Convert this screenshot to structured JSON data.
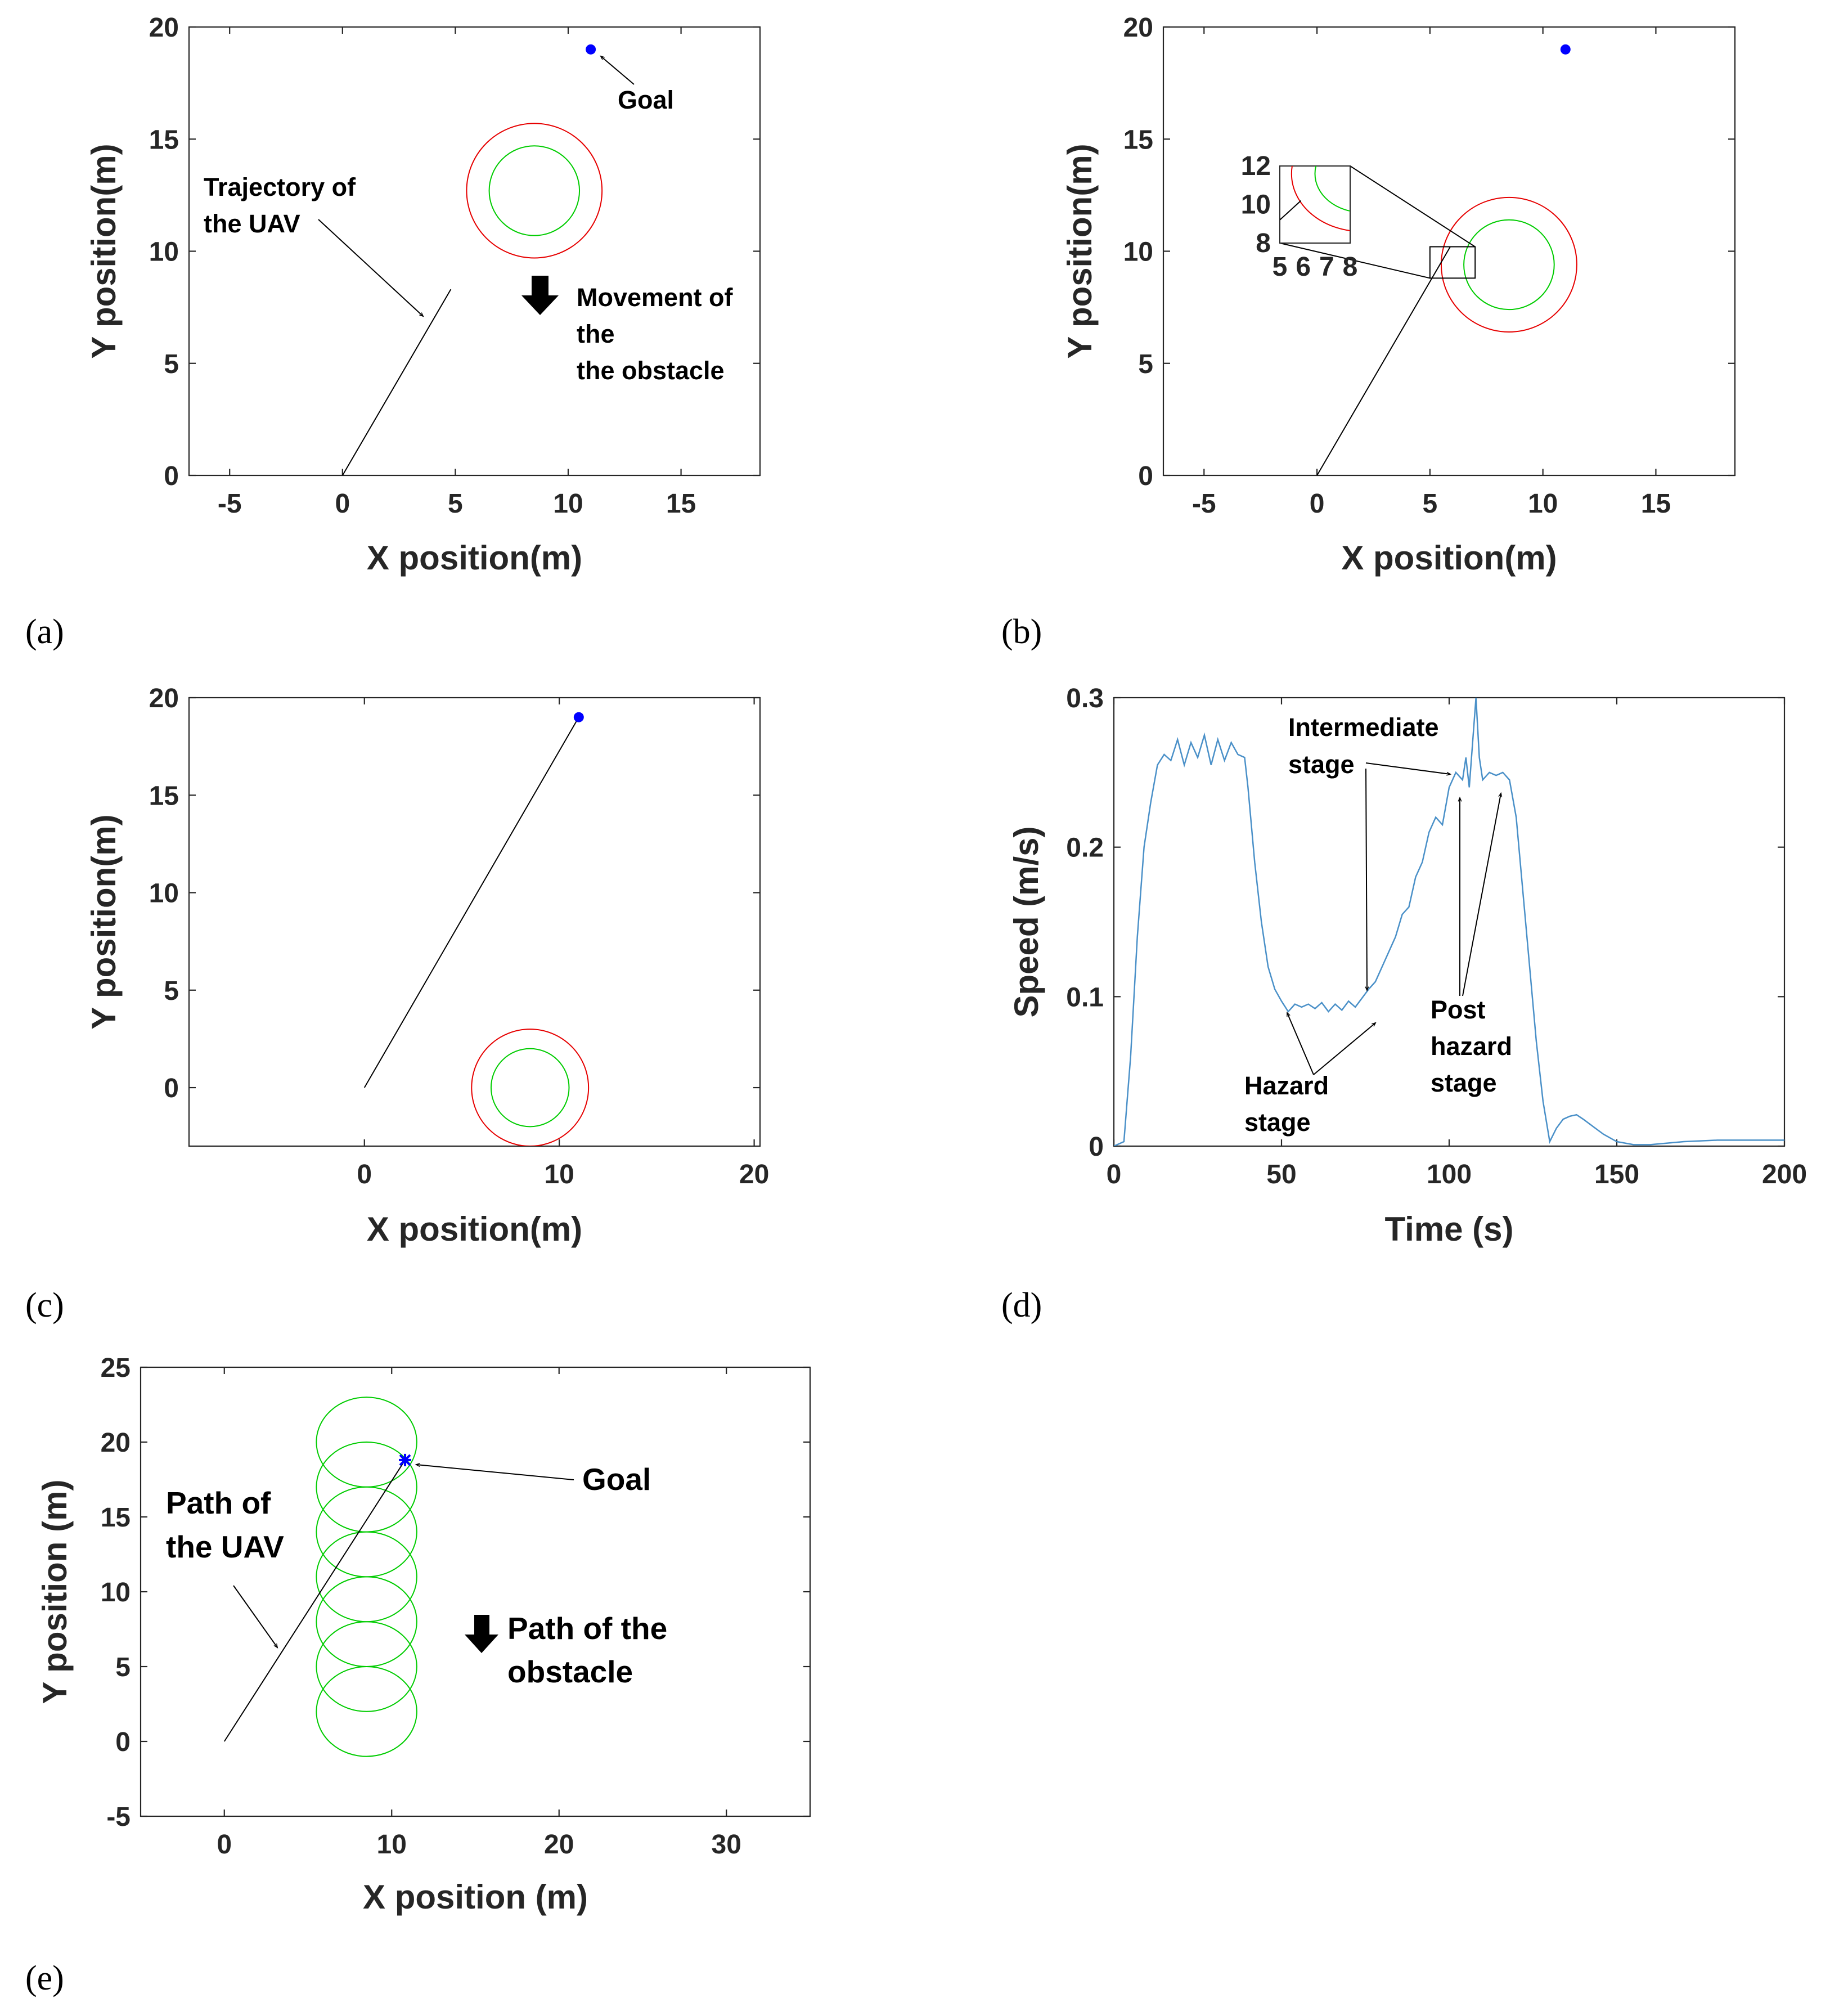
{
  "colors": {
    "trajectory": "#000000",
    "goal": "#0000ff",
    "inner_circle": "#00cc00",
    "outer_circle": "#e60000",
    "speed_line": "#4a90c8",
    "axes": "#262626"
  },
  "panels": {
    "a": {
      "label": "(a)",
      "ann_goal": "Goal",
      "ann_traj_1": "Trajectory of",
      "ann_traj_2": "the UAV",
      "ann_move_1": "Movement of",
      "ann_move_2": "the",
      "ann_move_3": "the obstacle"
    },
    "b": {
      "label": "(b)"
    },
    "c": {
      "label": "(c)"
    },
    "d": {
      "label": "(d)",
      "ann_inter_1": "Intermediate",
      "ann_inter_2": "stage",
      "ann_hazard_1": "Hazard",
      "ann_hazard_2": "stage",
      "ann_post_1": "Post",
      "ann_post_2": "hazard",
      "ann_post_3": "stage"
    },
    "e": {
      "label": "(e)",
      "ann_goal": "Goal",
      "ann_path_1": "Path of",
      "ann_path_2": "the UAV",
      "ann_obs_1": "Path of the",
      "ann_obs_2": "obstacle"
    }
  },
  "chart_data": [
    {
      "id": "a",
      "type": "scatter",
      "xlabel": "X position(m)",
      "ylabel": "Y position(m)",
      "xlim": [
        -6.8,
        18.5
      ],
      "ylim": [
        0,
        20
      ],
      "xticks": [
        -5,
        0,
        5,
        10,
        15
      ],
      "yticks": [
        0,
        5,
        10,
        15,
        20
      ],
      "trajectory": [
        [
          0,
          0
        ],
        [
          4.8,
          8.3
        ]
      ],
      "goal": [
        11,
        19
      ],
      "circles": [
        {
          "cx": 8.5,
          "cy": 12.7,
          "r": 2.0,
          "color": "green"
        },
        {
          "cx": 8.5,
          "cy": 12.7,
          "r": 3.0,
          "color": "red"
        }
      ]
    },
    {
      "id": "b",
      "type": "scatter",
      "xlabel": "X position(m)",
      "ylabel": "Y position(m)",
      "xlim": [
        -6.8,
        18.5
      ],
      "ylim": [
        0,
        20
      ],
      "xticks": [
        -5,
        0,
        5,
        10,
        15
      ],
      "yticks": [
        0,
        5,
        10,
        15,
        20
      ],
      "trajectory": [
        [
          0,
          0
        ],
        [
          5.9,
          10.2
        ]
      ],
      "goal": [
        11,
        19
      ],
      "circles": [
        {
          "cx": 8.5,
          "cy": 9.4,
          "r": 2.0,
          "color": "green"
        },
        {
          "cx": 8.5,
          "cy": 9.4,
          "r": 3.0,
          "color": "red"
        }
      ],
      "inset": {
        "xlim": [
          5,
          8
        ],
        "ylim": [
          8,
          12
        ],
        "xticks": [
          5,
          6,
          7,
          8
        ],
        "yticks": [
          8,
          10,
          12
        ]
      }
    },
    {
      "id": "c",
      "type": "scatter",
      "xlabel": "X position(m)",
      "ylabel": "Y position(m)",
      "xlim": [
        -9,
        20.3
      ],
      "ylim": [
        -3,
        20
      ],
      "xticks": [
        0,
        10,
        20
      ],
      "yticks": [
        0,
        5,
        10,
        15,
        20
      ],
      "trajectory": [
        [
          0,
          0
        ],
        [
          11,
          19
        ]
      ],
      "goal": [
        11,
        19
      ],
      "circles": [
        {
          "cx": 8.5,
          "cy": 0,
          "r": 2.0,
          "color": "green"
        },
        {
          "cx": 8.5,
          "cy": 0,
          "r": 3.0,
          "color": "red"
        }
      ]
    },
    {
      "id": "d",
      "type": "line",
      "xlabel": "Time (s)",
      "ylabel": "Speed (m/s)",
      "xlim": [
        0,
        200
      ],
      "ylim": [
        0,
        0.3
      ],
      "xticks": [
        0,
        50,
        100,
        150,
        200
      ],
      "yticks": [
        0,
        0.1,
        0.2,
        0.3
      ],
      "series": [
        {
          "x": [
            0,
            3,
            5,
            7,
            9,
            11,
            13,
            15,
            17,
            19,
            21,
            23,
            25,
            27,
            29,
            31,
            33,
            35,
            37,
            39,
            40,
            42,
            44,
            46,
            48,
            50,
            52,
            54,
            56,
            58,
            60,
            62,
            64,
            66,
            68,
            70,
            72,
            74,
            76,
            78,
            80,
            82,
            84,
            86,
            88,
            90,
            92,
            94,
            96,
            98,
            100,
            102,
            104,
            105,
            106,
            107,
            108,
            109,
            110,
            112,
            114,
            116,
            118,
            120,
            122,
            124,
            126,
            128,
            130,
            132,
            134,
            136,
            138,
            140,
            143,
            146,
            150,
            155,
            160,
            170,
            180,
            190,
            200
          ],
          "y": [
            0,
            0.003,
            0.06,
            0.14,
            0.2,
            0.23,
            0.255,
            0.262,
            0.258,
            0.272,
            0.255,
            0.27,
            0.26,
            0.275,
            0.255,
            0.272,
            0.258,
            0.27,
            0.262,
            0.26,
            0.24,
            0.19,
            0.15,
            0.12,
            0.105,
            0.097,
            0.09,
            0.095,
            0.093,
            0.095,
            0.092,
            0.096,
            0.09,
            0.095,
            0.091,
            0.097,
            0.093,
            0.099,
            0.105,
            0.11,
            0.12,
            0.13,
            0.14,
            0.155,
            0.16,
            0.18,
            0.19,
            0.21,
            0.22,
            0.215,
            0.24,
            0.25,
            0.245,
            0.26,
            0.24,
            0.27,
            0.3,
            0.26,
            0.245,
            0.25,
            0.248,
            0.25,
            0.245,
            0.22,
            0.17,
            0.12,
            0.07,
            0.03,
            0.003,
            0.012,
            0.018,
            0.02,
            0.021,
            0.018,
            0.013,
            0.008,
            0.003,
            0.001,
            0.001,
            0.003,
            0.004,
            0.004,
            0.004
          ]
        }
      ]
    },
    {
      "id": "e",
      "type": "scatter",
      "xlabel": "X position (m)",
      "ylabel": "Y position (m)",
      "xlim": [
        -5,
        35
      ],
      "ylim": [
        -5,
        25
      ],
      "xticks": [
        0,
        10,
        20,
        30
      ],
      "yticks": [
        -5,
        0,
        5,
        10,
        15,
        20,
        25
      ],
      "trajectory": [
        [
          0,
          0
        ],
        [
          10.8,
          18.8
        ]
      ],
      "goal": [
        10.8,
        18.8
      ],
      "circles": [
        {
          "cx": 8.5,
          "cy": 20,
          "r": 3.0,
          "color": "green"
        },
        {
          "cx": 8.5,
          "cy": 17,
          "r": 3.0,
          "color": "green"
        },
        {
          "cx": 8.5,
          "cy": 14,
          "r": 3.0,
          "color": "green"
        },
        {
          "cx": 8.5,
          "cy": 11,
          "r": 3.0,
          "color": "green"
        },
        {
          "cx": 8.5,
          "cy": 8,
          "r": 3.0,
          "color": "green"
        },
        {
          "cx": 8.5,
          "cy": 5,
          "r": 3.0,
          "color": "green"
        },
        {
          "cx": 8.5,
          "cy": 2,
          "r": 3.0,
          "color": "green"
        }
      ]
    }
  ]
}
